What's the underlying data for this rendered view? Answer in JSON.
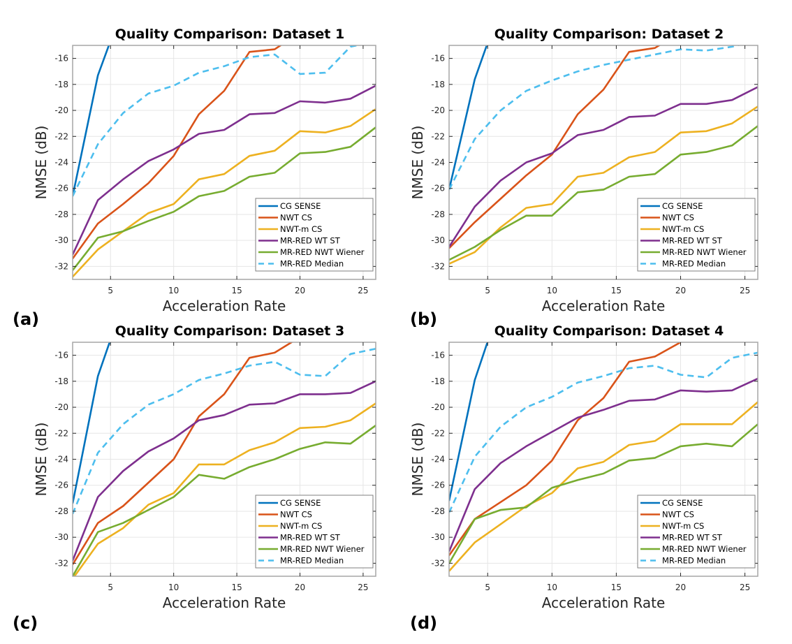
{
  "figure": {
    "panel_tags": [
      "(a)",
      "(b)",
      "(c)",
      "(d)"
    ]
  },
  "series_styles": [
    {
      "name": "CG SENSE",
      "color": "#0072BD",
      "dash": false
    },
    {
      "name": "NWT CS",
      "color": "#D95319",
      "dash": false
    },
    {
      "name": "NWT-m CS",
      "color": "#EDB120",
      "dash": false
    },
    {
      "name": "MR-RED WT ST",
      "color": "#7E2F8E",
      "dash": false
    },
    {
      "name": "MR-RED NWT Wiener",
      "color": "#77AC30",
      "dash": false
    },
    {
      "name": "MR-RED Median",
      "color": "#4DBEEE",
      "dash": true
    }
  ],
  "chart_data": [
    {
      "type": "line",
      "title": "Quality Comparison: Dataset 1",
      "xlabel": "Acceleration Rate",
      "ylabel": "NMSE (dB)",
      "xlim": [
        2,
        26
      ],
      "ylim": [
        -33,
        -15
      ],
      "xticks": [
        5,
        10,
        15,
        20,
        25
      ],
      "yticks": [
        -32,
        -30,
        -28,
        -26,
        -24,
        -22,
        -20,
        -18,
        -16
      ],
      "grid": true,
      "legend": "bottom-right",
      "x": [
        2,
        4,
        6,
        8,
        10,
        12,
        14,
        16,
        18,
        20,
        22,
        24,
        26
      ],
      "series": [
        {
          "name": "CG SENSE",
          "values": [
            -26.6,
            -17.3,
            -12.0
          ]
        },
        {
          "name": "NWT CS",
          "values": [
            -31.4,
            -28.7,
            -27.2,
            -25.6,
            -23.5,
            -20.3,
            -18.5,
            -15.5,
            -15.3,
            -14.0
          ]
        },
        {
          "name": "NWT-m CS",
          "values": [
            -32.8,
            -30.7,
            -29.3,
            -27.9,
            -27.2,
            -25.3,
            -24.9,
            -23.5,
            -23.1,
            -21.6,
            -21.7,
            -21.2,
            -19.9
          ]
        },
        {
          "name": "MR-RED WT ST",
          "values": [
            -31.1,
            -26.9,
            -25.3,
            -23.9,
            -23.0,
            -21.8,
            -21.5,
            -20.3,
            -20.2,
            -19.3,
            -19.4,
            -19.1,
            -18.1
          ]
        },
        {
          "name": "MR-RED NWT Wiener",
          "values": [
            -32.3,
            -29.8,
            -29.3,
            -28.5,
            -27.8,
            -26.6,
            -26.2,
            -25.1,
            -24.8,
            -23.3,
            -23.2,
            -22.8,
            -21.3
          ]
        },
        {
          "name": "MR-RED Median",
          "values": [
            -26.6,
            -22.6,
            -20.2,
            -18.7,
            -18.1,
            -17.1,
            -16.6,
            -15.9,
            -15.7,
            -17.2,
            -17.1,
            -15.1,
            -14.7
          ]
        }
      ]
    },
    {
      "type": "line",
      "title": "Quality Comparison: Dataset 2",
      "xlabel": "Acceleration Rate",
      "ylabel": "NMSE (dB)",
      "xlim": [
        2,
        26
      ],
      "ylim": [
        -33,
        -15
      ],
      "xticks": [
        5,
        10,
        15,
        20,
        25
      ],
      "yticks": [
        -32,
        -30,
        -28,
        -26,
        -24,
        -22,
        -20,
        -18,
        -16
      ],
      "grid": true,
      "legend": "bottom-right",
      "x": [
        2,
        4,
        6,
        8,
        10,
        12,
        14,
        16,
        18,
        20,
        22,
        24,
        26
      ],
      "series": [
        {
          "name": "CG SENSE",
          "values": [
            -26.1,
            -17.6,
            -12.0
          ]
        },
        {
          "name": "NWT CS",
          "values": [
            -30.6,
            -28.6,
            -26.8,
            -25.0,
            -23.4,
            -20.3,
            -18.4,
            -15.5,
            -15.2,
            -14.0
          ]
        },
        {
          "name": "NWT-m CS",
          "values": [
            -31.8,
            -30.9,
            -29.0,
            -27.5,
            -27.2,
            -25.1,
            -24.8,
            -23.6,
            -23.2,
            -21.7,
            -21.6,
            -21.0,
            -19.7
          ]
        },
        {
          "name": "MR-RED WT ST",
          "values": [
            -30.5,
            -27.4,
            -25.4,
            -24.0,
            -23.3,
            -21.9,
            -21.5,
            -20.5,
            -20.4,
            -19.5,
            -19.5,
            -19.2,
            -18.2
          ]
        },
        {
          "name": "MR-RED NWT Wiener",
          "values": [
            -31.5,
            -30.5,
            -29.2,
            -28.1,
            -28.1,
            -26.3,
            -26.1,
            -25.1,
            -24.9,
            -23.4,
            -23.2,
            -22.7,
            -21.2
          ]
        },
        {
          "name": "MR-RED Median",
          "values": [
            -26.1,
            -22.2,
            -20.0,
            -18.5,
            -17.7,
            -17.0,
            -16.5,
            -16.1,
            -15.7,
            -15.3,
            -15.4,
            -15.1,
            -14.6
          ]
        }
      ]
    },
    {
      "type": "line",
      "title": "Quality Comparison: Dataset 3",
      "xlabel": "Acceleration Rate",
      "ylabel": "NMSE (dB)",
      "xlim": [
        2,
        26
      ],
      "ylim": [
        -33,
        -15
      ],
      "xticks": [
        5,
        10,
        15,
        20,
        25
      ],
      "yticks": [
        -32,
        -30,
        -28,
        -26,
        -24,
        -22,
        -20,
        -18,
        -16
      ],
      "grid": true,
      "legend": "bottom-right",
      "x": [
        2,
        4,
        6,
        8,
        10,
        12,
        14,
        16,
        18,
        20,
        22,
        24,
        26
      ],
      "series": [
        {
          "name": "CG SENSE",
          "values": [
            -27.4,
            -17.6,
            -12.0
          ]
        },
        {
          "name": "NWT CS",
          "values": [
            -32.1,
            -28.9,
            -27.6,
            -25.8,
            -24.0,
            -20.7,
            -19.0,
            -16.2,
            -15.8,
            -14.6
          ]
        },
        {
          "name": "NWT-m CS",
          "values": [
            -33.2,
            -30.5,
            -29.3,
            -27.5,
            -26.6,
            -24.4,
            -24.4,
            -23.3,
            -22.7,
            -21.6,
            -21.5,
            -21.0,
            -19.7
          ]
        },
        {
          "name": "MR-RED WT ST",
          "values": [
            -31.8,
            -26.9,
            -24.9,
            -23.4,
            -22.4,
            -21.0,
            -20.6,
            -19.8,
            -19.7,
            -19.0,
            -19.0,
            -18.9,
            -18.0
          ]
        },
        {
          "name": "MR-RED NWT Wiener",
          "values": [
            -33.0,
            -29.6,
            -28.9,
            -27.9,
            -26.9,
            -25.2,
            -25.5,
            -24.6,
            -24.0,
            -23.2,
            -22.7,
            -22.8,
            -21.4
          ]
        },
        {
          "name": "MR-RED Median",
          "values": [
            -28.2,
            -23.5,
            -21.3,
            -19.8,
            -19.0,
            -17.9,
            -17.4,
            -16.8,
            -16.5,
            -17.5,
            -17.6,
            -15.9,
            -15.5
          ]
        }
      ]
    },
    {
      "type": "line",
      "title": "Quality Comparison: Dataset 4",
      "xlabel": "Acceleration Rate",
      "ylabel": "NMSE (dB)",
      "xlim": [
        2,
        26
      ],
      "ylim": [
        -33,
        -15
      ],
      "xticks": [
        5,
        10,
        15,
        20,
        25
      ],
      "yticks": [
        -32,
        -30,
        -28,
        -26,
        -24,
        -22,
        -20,
        -18,
        -16
      ],
      "grid": true,
      "legend": "bottom-right",
      "x": [
        2,
        4,
        6,
        8,
        10,
        12,
        14,
        16,
        18,
        20,
        22,
        24,
        26
      ],
      "series": [
        {
          "name": "CG SENSE",
          "values": [
            -27.2,
            -17.9,
            -12.0
          ]
        },
        {
          "name": "NWT CS",
          "values": [
            -31.4,
            -28.6,
            -27.3,
            -26.0,
            -24.1,
            -21.0,
            -19.3,
            -16.5,
            -16.1,
            -15.0
          ]
        },
        {
          "name": "NWT-m CS",
          "values": [
            -32.6,
            -30.4,
            -29.0,
            -27.6,
            -26.6,
            -24.7,
            -24.2,
            -22.9,
            -22.6,
            -21.3,
            -21.3,
            -21.3,
            -19.6
          ]
        },
        {
          "name": "MR-RED WT ST",
          "values": [
            -31.1,
            -26.3,
            -24.3,
            -23.0,
            -21.9,
            -20.8,
            -20.2,
            -19.5,
            -19.4,
            -18.7,
            -18.8,
            -18.7,
            -17.8
          ]
        },
        {
          "name": "MR-RED NWT Wiener",
          "values": [
            -32.0,
            -28.6,
            -27.9,
            -27.7,
            -26.2,
            -25.6,
            -25.1,
            -24.1,
            -23.9,
            -23.0,
            -22.8,
            -23.0,
            -21.3
          ]
        },
        {
          "name": "MR-RED Median",
          "values": [
            -28.1,
            -23.8,
            -21.5,
            -20.0,
            -19.2,
            -18.1,
            -17.6,
            -17.0,
            -16.8,
            -17.5,
            -17.7,
            -16.2,
            -15.8
          ]
        }
      ]
    }
  ]
}
